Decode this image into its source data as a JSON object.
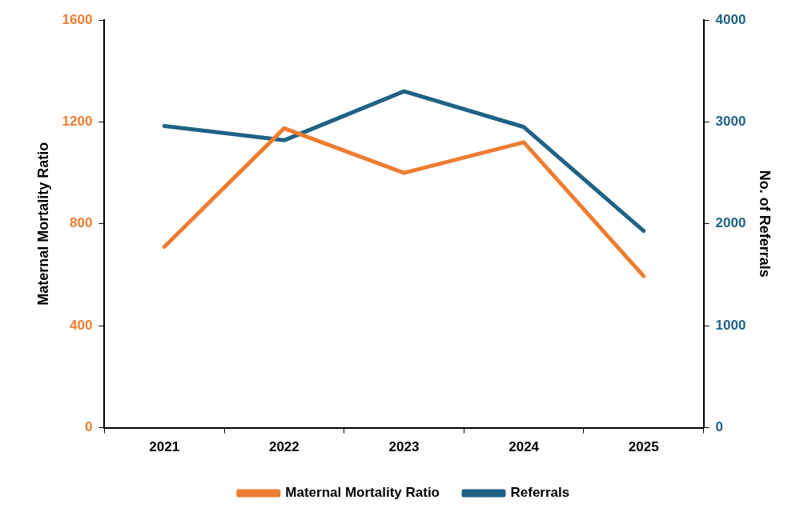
{
  "chart_data": {
    "type": "line",
    "categories": [
      "2021",
      "2022",
      "2023",
      "2024",
      "2025"
    ],
    "ylabel": "Maternal Mortality Ratio",
    "y2label": "No. of Referrals",
    "ylim": [
      0,
      1600
    ],
    "yticks": [
      0,
      400,
      800,
      1200,
      1600
    ],
    "y2lim": [
      0,
      4000
    ],
    "y2ticks": [
      0,
      1000,
      2000,
      3000,
      4000
    ],
    "series": [
      {
        "name": "Maternal Mortality Ratio",
        "color": "#ed7d31",
        "values": [
          710,
          1175,
          1000,
          1120,
          595
        ]
      },
      {
        "name": "Referrals",
        "color": "#1f6285",
        "axis": "y2",
        "values": [
          2960,
          2820,
          3300,
          2950,
          1930
        ]
      }
    ],
    "grid": false,
    "legend": "bottom",
    "marker": "none",
    "line_style": "solid"
  }
}
